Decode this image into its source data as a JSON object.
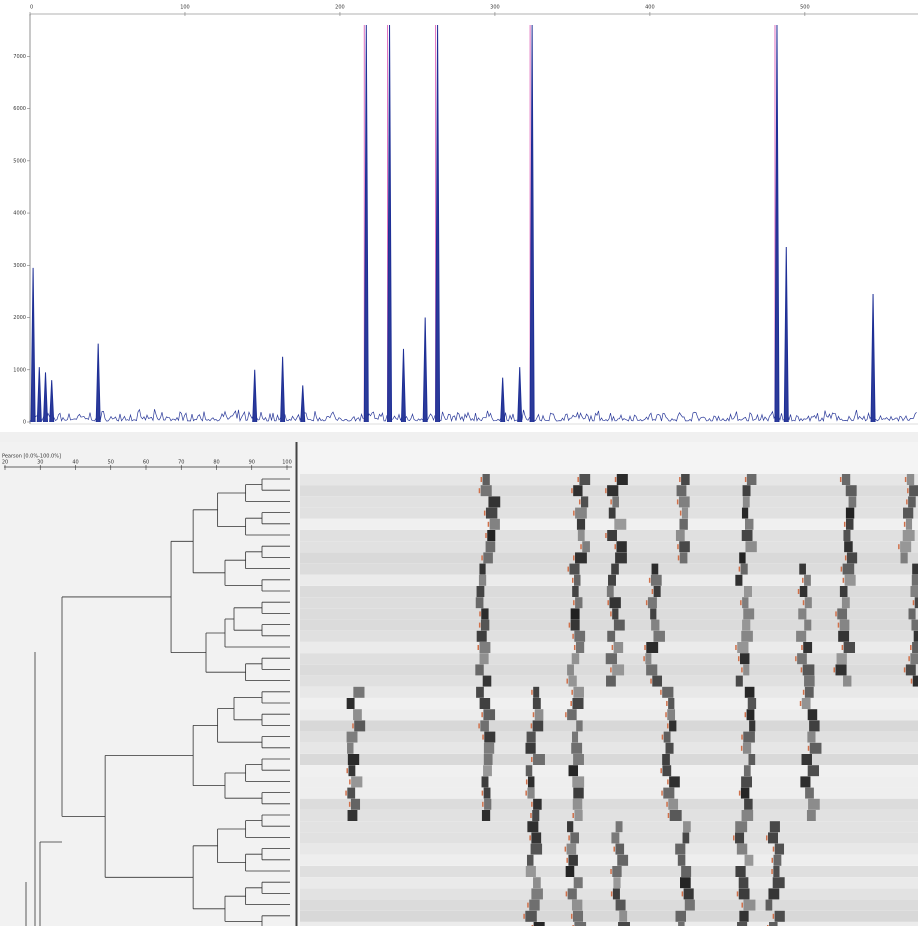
{
  "electropherogram": {
    "type": "peaks",
    "xlim": [
      0,
      573
    ],
    "ylim": [
      0,
      7600
    ],
    "xticks": [
      0,
      100,
      200,
      300,
      400,
      500
    ],
    "yticks": [
      0,
      1000,
      2000,
      3000,
      4000,
      5000,
      6000,
      7000
    ],
    "peaks": {
      "x": [
        2,
        6,
        10,
        14,
        44,
        145,
        163,
        176,
        217,
        232,
        241,
        255,
        263,
        305,
        316,
        324,
        482,
        488,
        544
      ],
      "height": [
        2950,
        1050,
        950,
        800,
        1500,
        1000,
        1250,
        700,
        7600,
        7600,
        1400,
        2000,
        7600,
        850,
        1050,
        7600,
        7600,
        3350,
        2450
      ]
    }
  },
  "dendrogram": {
    "title": "Pearson [0.0%-100.0%]",
    "scale": [
      20,
      30,
      40,
      50,
      60,
      70,
      80,
      90,
      100
    ]
  }
}
